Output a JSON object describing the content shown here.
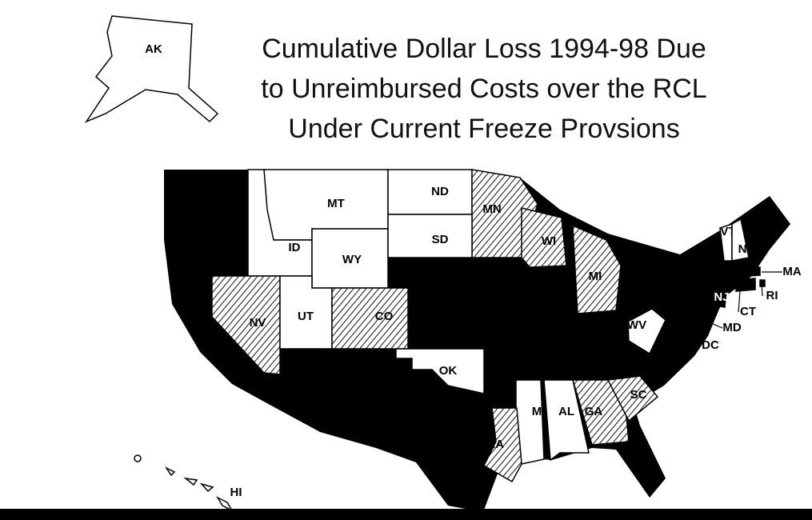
{
  "title": [
    "Cumulative Dollar Loss 1994-98 Due",
    "to Unreimbursed Costs over the RCL",
    "Under Current Freeze Provsions"
  ],
  "states": [
    {
      "label": "AK",
      "fill": "white"
    },
    {
      "label": "MT",
      "fill": "white"
    },
    {
      "label": "ND",
      "fill": "white"
    },
    {
      "label": "MN",
      "fill": "hatched"
    },
    {
      "label": "ID",
      "fill": "white"
    },
    {
      "label": "WY",
      "fill": "white"
    },
    {
      "label": "SD",
      "fill": "white"
    },
    {
      "label": "WI",
      "fill": "hatched"
    },
    {
      "label": "MI",
      "fill": "hatched"
    },
    {
      "label": "NV",
      "fill": "hatched"
    },
    {
      "label": "UT",
      "fill": "white"
    },
    {
      "label": "CO",
      "fill": "hatched"
    },
    {
      "label": "OK",
      "fill": "white"
    },
    {
      "label": "MS",
      "fill": "white"
    },
    {
      "label": "AL",
      "fill": "white"
    },
    {
      "label": "GA",
      "fill": "hatched"
    },
    {
      "label": "SC",
      "fill": "hatched"
    },
    {
      "label": "LA",
      "fill": "hatched"
    },
    {
      "label": "WV",
      "fill": "white"
    },
    {
      "label": "VT",
      "fill": "white"
    },
    {
      "label": "N",
      "fill": "white"
    },
    {
      "label": "MA",
      "fill": "black"
    },
    {
      "label": "RI",
      "fill": "black"
    },
    {
      "label": "CT",
      "fill": "black"
    },
    {
      "label": "NJ",
      "fill": "black"
    },
    {
      "label": "MD",
      "fill": "black"
    },
    {
      "label": "DC",
      "fill": "black"
    },
    {
      "label": "HI",
      "fill": "white"
    }
  ]
}
